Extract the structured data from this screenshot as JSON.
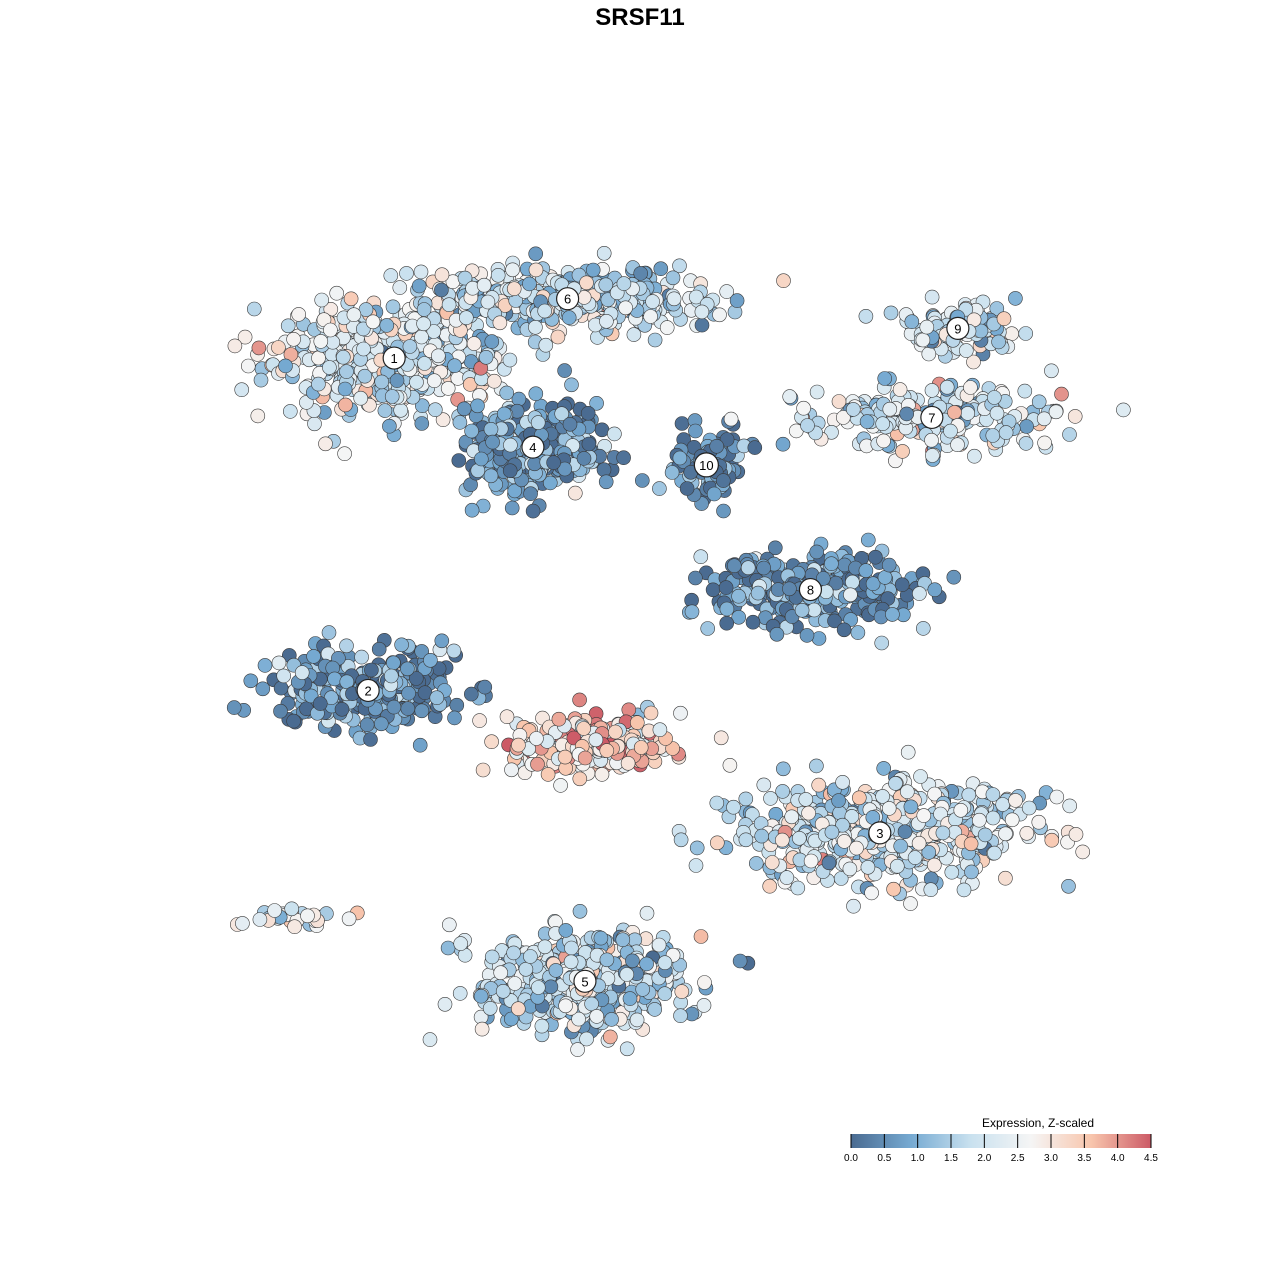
{
  "chart_data": {
    "type": "scatter",
    "title": "SRSF11",
    "xlabel": "",
    "ylabel": "",
    "grid": false,
    "legend_placement": "bottom-right",
    "colorbar": {
      "title": "Expression, Z-scaled",
      "range": [
        0.0,
        4.5
      ],
      "ticks": [
        "0.0",
        "0.5",
        "1.0",
        "1.5",
        "2.0",
        "2.5",
        "3.0",
        "3.5",
        "4.0",
        "4.5"
      ],
      "colors": [
        "#4a6b91",
        "#76aad2",
        "#c9e1ef",
        "#f5f5f5",
        "#f8c6ad",
        "#cc5a66"
      ]
    },
    "clusters": [
      {
        "label": "1",
        "x": 0.22,
        "y": 0.7,
        "spread": [
          0.13,
          0.1
        ],
        "n": 520,
        "mean_expr": 2.1
      },
      {
        "label": "6",
        "x": 0.42,
        "y": 0.8,
        "spread": [
          0.15,
          0.05
        ],
        "n": 430,
        "mean_expr": 1.9
      },
      {
        "label": "4",
        "x": 0.38,
        "y": 0.55,
        "spread": [
          0.08,
          0.08
        ],
        "n": 360,
        "mean_expr": 0.7
      },
      {
        "label": "10",
        "x": 0.58,
        "y": 0.52,
        "spread": [
          0.04,
          0.06
        ],
        "n": 90,
        "mean_expr": 0.4
      },
      {
        "label": "9",
        "x": 0.87,
        "y": 0.75,
        "spread": [
          0.07,
          0.04
        ],
        "n": 130,
        "mean_expr": 2.0
      },
      {
        "label": "7",
        "x": 0.84,
        "y": 0.6,
        "spread": [
          0.14,
          0.06
        ],
        "n": 230,
        "mean_expr": 2.1
      },
      {
        "label": "8",
        "x": 0.7,
        "y": 0.31,
        "spread": [
          0.13,
          0.06
        ],
        "n": 300,
        "mean_expr": 0.6
      },
      {
        "label": "2",
        "x": 0.19,
        "y": 0.14,
        "spread": [
          0.11,
          0.07
        ],
        "n": 260,
        "mean_expr": 0.6
      },
      {
        "label": "3",
        "x": 0.78,
        "y": -0.1,
        "spread": [
          0.17,
          0.08
        ],
        "n": 540,
        "mean_expr": 2.1
      },
      {
        "label": "5",
        "x": 0.44,
        "y": -0.35,
        "spread": [
          0.12,
          0.08
        ],
        "n": 480,
        "mean_expr": 1.8
      },
      {
        "label": "",
        "x": 0.45,
        "y": 0.05,
        "spread": [
          0.1,
          0.05
        ],
        "n": 220,
        "mean_expr": 3.1
      },
      {
        "label": "",
        "x": 0.1,
        "y": -0.24,
        "spread": [
          0.05,
          0.02
        ],
        "n": 30,
        "mean_expr": 2.5
      }
    ]
  }
}
